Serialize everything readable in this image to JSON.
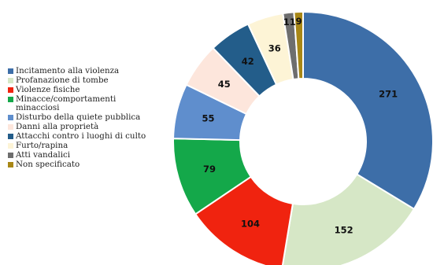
{
  "chart_data": {
    "type": "pie",
    "title": "",
    "categories": [
      "Incitamento alla violenza",
      "Profanazione di tombe",
      "Violenze fisiche",
      "Minacce/comportamenti minacciosi",
      "Disturbo della quiete pubblica",
      "Danni alla proprietà",
      "Attacchi contro i luoghi di culto",
      "Furto/rapina",
      "Atti vandalici",
      "Non specificato"
    ],
    "values": [
      271,
      152,
      104,
      79,
      55,
      45,
      42,
      36,
      11,
      9
    ],
    "data_labels": [
      "271",
      "152",
      "104",
      "79",
      "55",
      "45",
      "42",
      "36",
      "11",
      "9"
    ],
    "colors": [
      "#3d6ea8",
      "#d6e7c6",
      "#f0230f",
      "#14a84a",
      "#5f8ecd",
      "#fde6dc",
      "#235d8a",
      "#fdf4d6",
      "#6e6e6e",
      "#a88716"
    ],
    "legend_position": "left",
    "style": "donut"
  }
}
